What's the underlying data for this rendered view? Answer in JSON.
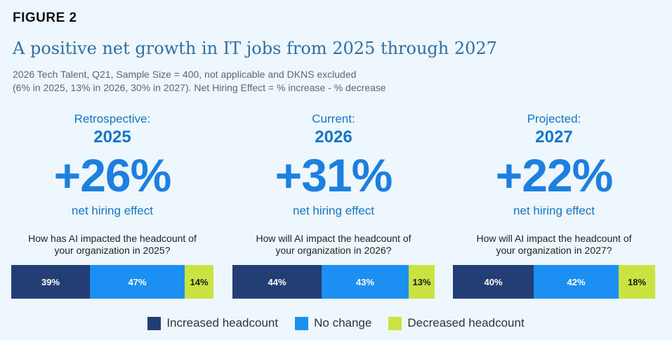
{
  "figure_label": "FIGURE 2",
  "title": "A positive net growth in IT jobs from 2025 through 2027",
  "subtitle": [
    "2026 Tech Talent, Q21, Sample Size = 400, not applicable and DKNS excluded",
    "(6% in 2025, 13% in 2026, 30% in 2027). Net Hiring Effect = % increase - % decrease"
  ],
  "colors": {
    "increased": "#223e74",
    "no_change": "#1b8ff2",
    "decreased": "#cbe340"
  },
  "chart_data": {
    "type": "bar",
    "orientation": "horizontal-stacked-100",
    "series_keys": [
      "Increased headcount",
      "No change",
      "Decreased headcount"
    ],
    "panels": [
      {
        "period": "Retrospective:",
        "year": "2025",
        "net_hiring_effect": "+26%",
        "net_label": "net hiring effect",
        "question": [
          "How has AI impacted the headcount of",
          "your organization in 2025?"
        ],
        "values": [
          39,
          47,
          14
        ],
        "labels": [
          "39%",
          "47%",
          "14%"
        ]
      },
      {
        "period": "Current:",
        "year": "2026",
        "net_hiring_effect": "+31%",
        "net_label": "net hiring effect",
        "question": [
          "How will AI impact the headcount of",
          "your organization in 2026?"
        ],
        "values": [
          44,
          43,
          13
        ],
        "labels": [
          "44%",
          "43%",
          "13%"
        ]
      },
      {
        "period": "Projected:",
        "year": "2027",
        "net_hiring_effect": "+22%",
        "net_label": "net hiring effect",
        "question": [
          "How will AI impact the headcount of",
          "your organization in 2027?"
        ],
        "values": [
          40,
          42,
          18
        ],
        "labels": [
          "40%",
          "42%",
          "18%"
        ]
      }
    ],
    "legend": [
      "Increased headcount",
      "No change",
      "Decreased headcount"
    ],
    "legend_position": "bottom-center"
  }
}
